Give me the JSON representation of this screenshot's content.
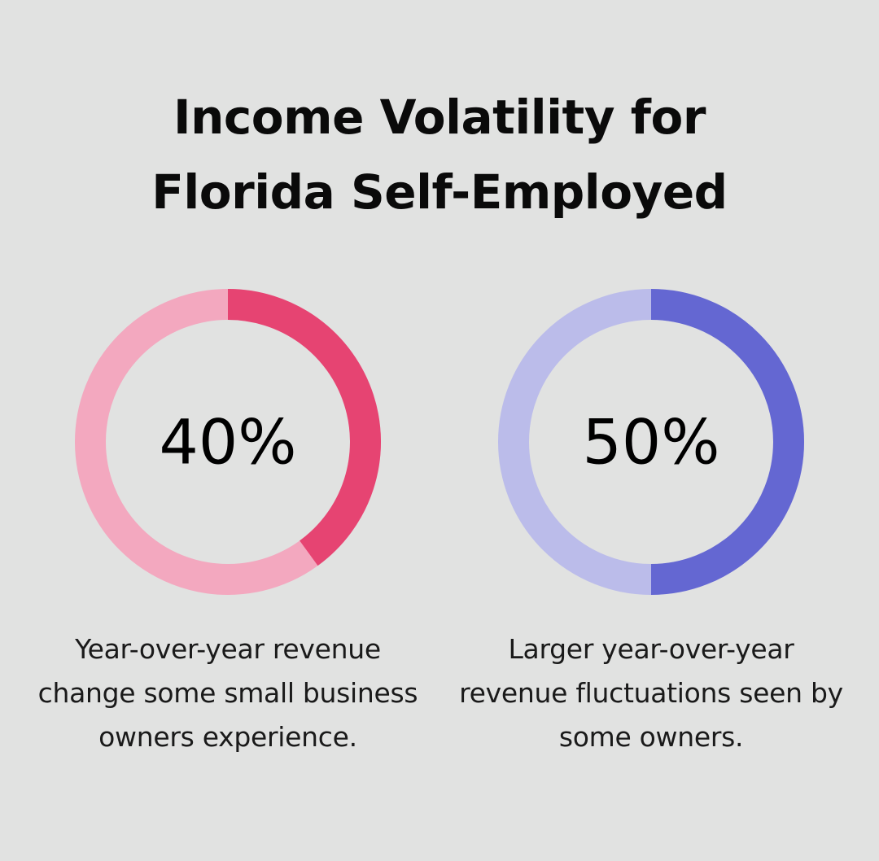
{
  "title_lines": [
    "Income Volatility for",
    "Florida Self-Employed"
  ],
  "chart_data": [
    {
      "type": "pie",
      "value": 40,
      "max": 100,
      "label": "40%",
      "caption": "Year-over-year revenue change some small business owners experience.",
      "colors": {
        "filled": "#e64472",
        "remainder": "#f3a8bf"
      }
    },
    {
      "type": "pie",
      "value": 50,
      "max": 100,
      "label": "50%",
      "caption": "Larger year-over-year revenue fluctuations seen by some owners.",
      "colors": {
        "filled": "#6467d2",
        "remainder": "#bbbcea"
      }
    }
  ]
}
